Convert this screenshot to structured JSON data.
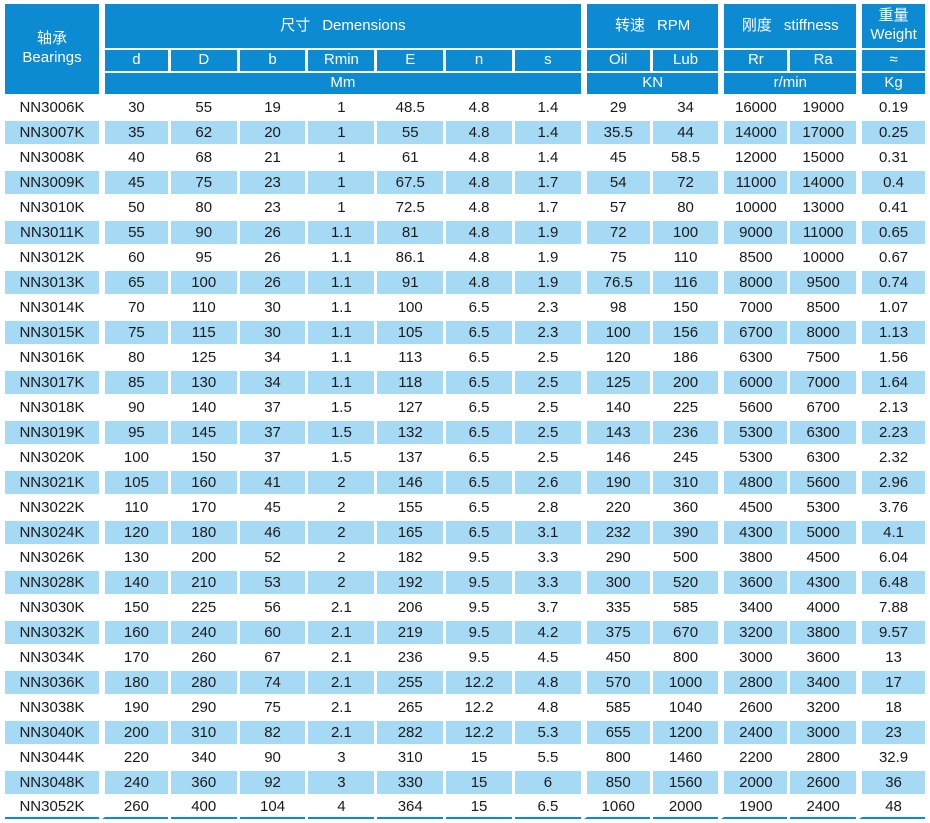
{
  "table": {
    "header": {
      "bearings": {
        "zh": "轴承",
        "en": "Bearings"
      },
      "groups": [
        {
          "zh": "尺寸",
          "en": "Demensions",
          "cols": [
            "d",
            "D",
            "b",
            "Rmin",
            "E",
            "n",
            "s"
          ],
          "unit": "Mm"
        },
        {
          "zh": "转速",
          "en": "RPM",
          "cols": [
            "Oil",
            "Lub"
          ],
          "unit": "KN"
        },
        {
          "zh": "刚度",
          "en": "stiffness",
          "cols": [
            "Rr",
            "Ra"
          ],
          "unit": "r/min"
        },
        {
          "zh": "重量",
          "en": "Weight",
          "cols": [
            "≈"
          ],
          "unit": "Kg"
        }
      ]
    },
    "rows": [
      [
        "NN3006K",
        "30",
        "55",
        "19",
        "1",
        "48.5",
        "4.8",
        "1.4",
        "29",
        "34",
        "16000",
        "19000",
        "0.19"
      ],
      [
        "NN3007K",
        "35",
        "62",
        "20",
        "1",
        "55",
        "4.8",
        "1.4",
        "35.5",
        "44",
        "14000",
        "17000",
        "0.25"
      ],
      [
        "NN3008K",
        "40",
        "68",
        "21",
        "1",
        "61",
        "4.8",
        "1.4",
        "45",
        "58.5",
        "12000",
        "15000",
        "0.31"
      ],
      [
        "NN3009K",
        "45",
        "75",
        "23",
        "1",
        "67.5",
        "4.8",
        "1.7",
        "54",
        "72",
        "11000",
        "14000",
        "0.4"
      ],
      [
        "NN3010K",
        "50",
        "80",
        "23",
        "1",
        "72.5",
        "4.8",
        "1.7",
        "57",
        "80",
        "10000",
        "13000",
        "0.41"
      ],
      [
        "NN3011K",
        "55",
        "90",
        "26",
        "1.1",
        "81",
        "4.8",
        "1.9",
        "72",
        "100",
        "9000",
        "11000",
        "0.65"
      ],
      [
        "NN3012K",
        "60",
        "95",
        "26",
        "1.1",
        "86.1",
        "4.8",
        "1.9",
        "75",
        "110",
        "8500",
        "10000",
        "0.67"
      ],
      [
        "NN3013K",
        "65",
        "100",
        "26",
        "1.1",
        "91",
        "4.8",
        "1.9",
        "76.5",
        "116",
        "8000",
        "9500",
        "0.74"
      ],
      [
        "NN3014K",
        "70",
        "110",
        "30",
        "1.1",
        "100",
        "6.5",
        "2.3",
        "98",
        "150",
        "7000",
        "8500",
        "1.07"
      ],
      [
        "NN3015K",
        "75",
        "115",
        "30",
        "1.1",
        "105",
        "6.5",
        "2.3",
        "100",
        "156",
        "6700",
        "8000",
        "1.13"
      ],
      [
        "NN3016K",
        "80",
        "125",
        "34",
        "1.1",
        "113",
        "6.5",
        "2.5",
        "120",
        "186",
        "6300",
        "7500",
        "1.56"
      ],
      [
        "NN3017K",
        "85",
        "130",
        "34",
        "1.1",
        "118",
        "6.5",
        "2.5",
        "125",
        "200",
        "6000",
        "7000",
        "1.64"
      ],
      [
        "NN3018K",
        "90",
        "140",
        "37",
        "1.5",
        "127",
        "6.5",
        "2.5",
        "140",
        "225",
        "5600",
        "6700",
        "2.13"
      ],
      [
        "NN3019K",
        "95",
        "145",
        "37",
        "1.5",
        "132",
        "6.5",
        "2.5",
        "143",
        "236",
        "5300",
        "6300",
        "2.23"
      ],
      [
        "NN3020K",
        "100",
        "150",
        "37",
        "1.5",
        "137",
        "6.5",
        "2.5",
        "146",
        "245",
        "5300",
        "6300",
        "2.32"
      ],
      [
        "NN3021K",
        "105",
        "160",
        "41",
        "2",
        "146",
        "6.5",
        "2.6",
        "190",
        "310",
        "4800",
        "5600",
        "2.96"
      ],
      [
        "NN3022K",
        "110",
        "170",
        "45",
        "2",
        "155",
        "6.5",
        "2.8",
        "220",
        "360",
        "4500",
        "5300",
        "3.76"
      ],
      [
        "NN3024K",
        "120",
        "180",
        "46",
        "2",
        "165",
        "6.5",
        "3.1",
        "232",
        "390",
        "4300",
        "5000",
        "4.1"
      ],
      [
        "NN3026K",
        "130",
        "200",
        "52",
        "2",
        "182",
        "9.5",
        "3.3",
        "290",
        "500",
        "3800",
        "4500",
        "6.04"
      ],
      [
        "NN3028K",
        "140",
        "210",
        "53",
        "2",
        "192",
        "9.5",
        "3.3",
        "300",
        "520",
        "3600",
        "4300",
        "6.48"
      ],
      [
        "NN3030K",
        "150",
        "225",
        "56",
        "2.1",
        "206",
        "9.5",
        "3.7",
        "335",
        "585",
        "3400",
        "4000",
        "7.88"
      ],
      [
        "NN3032K",
        "160",
        "240",
        "60",
        "2.1",
        "219",
        "9.5",
        "4.2",
        "375",
        "670",
        "3200",
        "3800",
        "9.57"
      ],
      [
        "NN3034K",
        "170",
        "260",
        "67",
        "2.1",
        "236",
        "9.5",
        "4.5",
        "450",
        "800",
        "3000",
        "3600",
        "13"
      ],
      [
        "NN3036K",
        "180",
        "280",
        "74",
        "2.1",
        "255",
        "12.2",
        "4.8",
        "570",
        "1000",
        "2800",
        "3400",
        "17"
      ],
      [
        "NN3038K",
        "190",
        "290",
        "75",
        "2.1",
        "265",
        "12.2",
        "4.8",
        "585",
        "1040",
        "2600",
        "3200",
        "18"
      ],
      [
        "NN3040K",
        "200",
        "310",
        "82",
        "2.1",
        "282",
        "12.2",
        "5.3",
        "655",
        "1200",
        "2400",
        "3000",
        "23"
      ],
      [
        "NN3044K",
        "220",
        "340",
        "90",
        "3",
        "310",
        "15",
        "5.5",
        "800",
        "1460",
        "2200",
        "2800",
        "32.9"
      ],
      [
        "NN3048K",
        "240",
        "360",
        "92",
        "3",
        "330",
        "15",
        "6",
        "850",
        "1560",
        "2000",
        "2600",
        "36"
      ],
      [
        "NN3052K",
        "260",
        "400",
        "104",
        "4",
        "364",
        "15",
        "6.5",
        "1060",
        "2000",
        "1900",
        "2400",
        "48"
      ]
    ]
  },
  "colors": {
    "header_bg": "#0c8bd3",
    "row_alt_bg": "#a6d9f4",
    "header_text": "#ffffff",
    "body_text": "#1a1a1a"
  }
}
